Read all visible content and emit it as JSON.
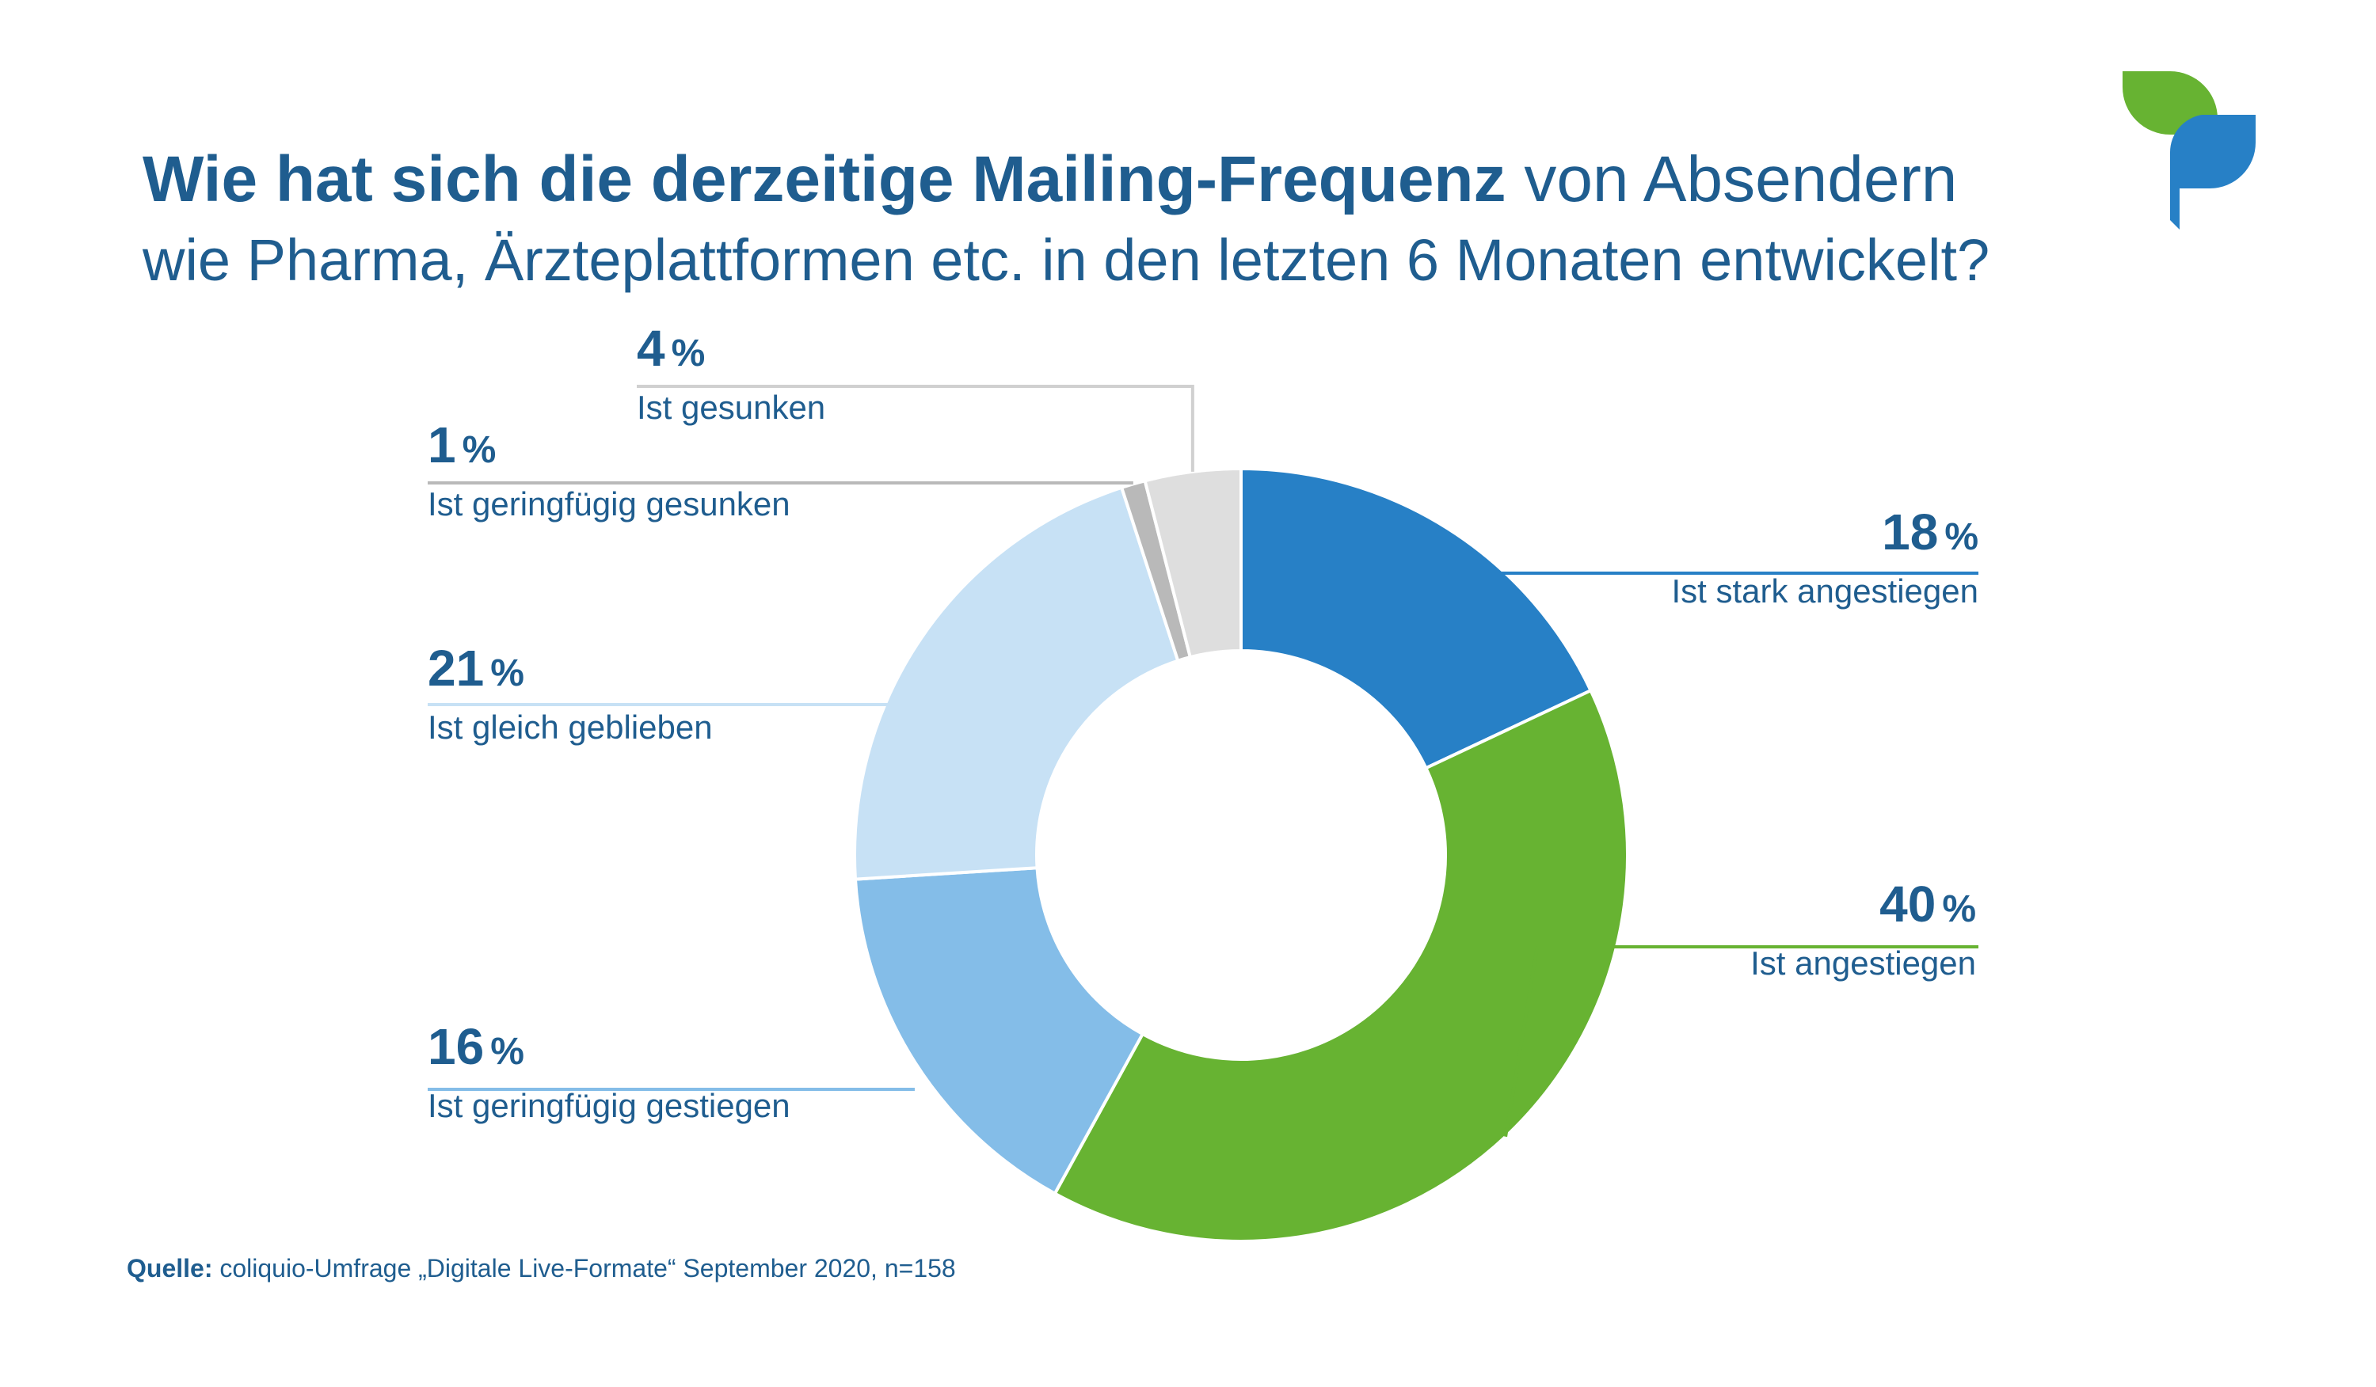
{
  "title": {
    "bold": "Wie hat sich die derzeitige Mailing-Frequenz",
    "rest": " von Absendern",
    "line2": "wie Pharma, Ärzteplattformen etc. in den letzten 6 Monaten entwickelt?"
  },
  "chart_data": {
    "type": "pie",
    "donut": true,
    "categories": [
      "Ist stark angestiegen",
      "Ist angestiegen",
      "Ist geringfügig gestiegen",
      "Ist gleich geblieben",
      "Ist geringfügig gesunken",
      "Ist gesunken"
    ],
    "values": [
      18,
      40,
      16,
      21,
      1,
      4
    ],
    "unit": "%",
    "colors": [
      "#2780c6",
      "#67b332",
      "#84bde8",
      "#c7e1f5",
      "#b9b9b9",
      "#dedede"
    ],
    "legend": "none",
    "labels": [
      {
        "value": "18",
        "unit": "%",
        "text": "Ist stark angestiegen"
      },
      {
        "value": "40",
        "unit": "%",
        "text": "Ist angestiegen"
      },
      {
        "value": "16",
        "unit": "%",
        "text": "Ist geringfügig gestiegen"
      },
      {
        "value": "21",
        "unit": "%",
        "text": "Ist gleich geblieben"
      },
      {
        "value": "1",
        "unit": "%",
        "text": "Ist geringfügig gesunken"
      },
      {
        "value": "4",
        "unit": "%",
        "text": "Ist gesunken"
      }
    ]
  },
  "source": {
    "label": "Quelle:",
    "text": " coliquio-Umfrage „Digitale Live-Formate“ September 2020, n=158"
  },
  "logo": {
    "name": "coliquio-logo-icon",
    "colors": [
      "#67b332",
      "#2780c6"
    ]
  }
}
